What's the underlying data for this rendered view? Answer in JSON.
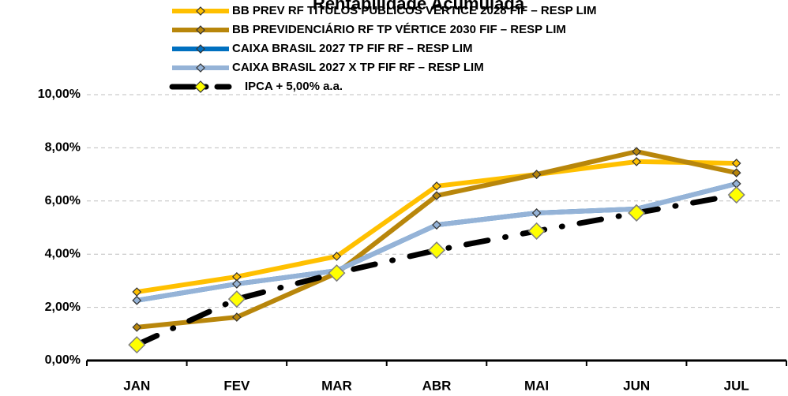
{
  "chart_data": {
    "type": "line",
    "title": "Rentabilidade Acumulada",
    "categories": [
      "JAN",
      "FEV",
      "MAR",
      "ABR",
      "MAI",
      "JUN",
      "JUL"
    ],
    "series": [
      {
        "name": "BB PREV RF TÍTULOS PÚBLICOS VÉRTICE 2028 FIF – RESP LIM",
        "color": "#FFC000",
        "values": [
          2.58,
          3.15,
          3.92,
          6.56,
          7.0,
          7.48,
          7.42
        ]
      },
      {
        "name": "BB PREVIDENCIÁRIO RF TP VÉRTICE 2030 FIF  – RESP LIM",
        "color": "#B8860B",
        "values": [
          1.25,
          1.63,
          3.29,
          6.2,
          7.0,
          7.86,
          7.06
        ]
      },
      {
        "name": "CAIXA BRASIL 2027 TP FIF RF – RESP LIM",
        "color": "#0070C0",
        "values": [
          2.26,
          2.88,
          3.38,
          5.1,
          5.55,
          5.7,
          6.65
        ]
      },
      {
        "name": "CAIXA BRASIL 2027 X TP FIF RF – RESP LIM",
        "color": "#95B3D7",
        "values": [
          2.26,
          2.88,
          3.38,
          5.1,
          5.55,
          5.7,
          6.65
        ]
      },
      {
        "name": "IPCA + 5,00% a.a.",
        "color": "#000000",
        "values": [
          0.59,
          2.31,
          3.29,
          4.15,
          4.87,
          5.55,
          6.23
        ]
      }
    ],
    "ylim": [
      0,
      10
    ],
    "yticks": [
      {
        "value": 0,
        "label": "0,00%"
      },
      {
        "value": 2,
        "label": "2,00%"
      },
      {
        "value": 4,
        "label": "4,00%"
      },
      {
        "value": 6,
        "label": "6,00%"
      },
      {
        "value": 8,
        "label": "8,00%"
      },
      {
        "value": 10,
        "label": "10,00%"
      }
    ],
    "grid": true
  }
}
